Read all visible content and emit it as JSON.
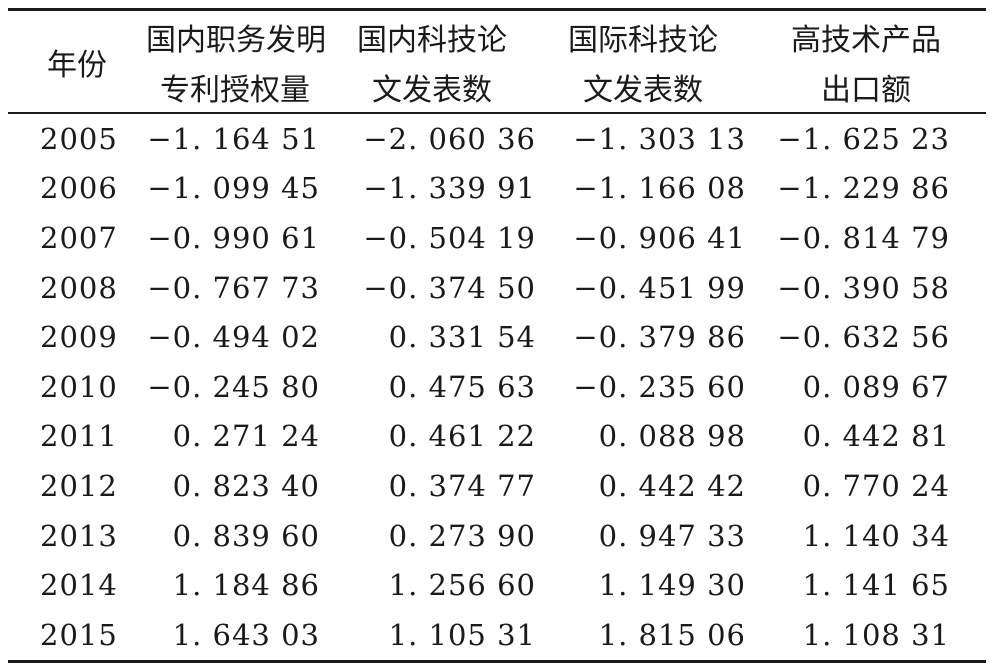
{
  "table": {
    "headers": {
      "year": "年份",
      "col1_line1": "国内职务发明",
      "col1_line2": "专利授权量",
      "col2_line1": "国内科技论",
      "col2_line2": "文发表数",
      "col3_line1": "国际科技论",
      "col3_line2": "文发表数",
      "col4_line1": "高技术产品",
      "col4_line2": "出口额"
    },
    "rows": [
      {
        "year": "2005",
        "v1": "−1. 164 51",
        "v2": "−2. 060 36",
        "v3": "−1. 303 13",
        "v4": "−1. 625 23"
      },
      {
        "year": "2006",
        "v1": "−1. 099 45",
        "v2": "−1. 339 91",
        "v3": "−1. 166 08",
        "v4": "−1. 229 86"
      },
      {
        "year": "2007",
        "v1": "−0. 990 61",
        "v2": "−0. 504 19",
        "v3": "−0. 906 41",
        "v4": "−0. 814 79"
      },
      {
        "year": "2008",
        "v1": "−0. 767 73",
        "v2": "−0. 374 50",
        "v3": "−0. 451 99",
        "v4": "−0. 390 58"
      },
      {
        "year": "2009",
        "v1": "−0. 494 02",
        "v2": "0. 331 54",
        "v3": "−0. 379 86",
        "v4": "−0. 632 56"
      },
      {
        "year": "2010",
        "v1": "−0. 245 80",
        "v2": "0. 475 63",
        "v3": "−0. 235 60",
        "v4": "0. 089 67"
      },
      {
        "year": "2011",
        "v1": "0. 271 24",
        "v2": "0. 461 22",
        "v3": "0. 088 98",
        "v4": "0. 442 81"
      },
      {
        "year": "2012",
        "v1": "0. 823 40",
        "v2": "0. 374 77",
        "v3": "0. 442 42",
        "v4": "0. 770 24"
      },
      {
        "year": "2013",
        "v1": "0. 839 60",
        "v2": "0. 273 90",
        "v3": "0. 947 33",
        "v4": "1. 140 34"
      },
      {
        "year": "2014",
        "v1": "1. 184 86",
        "v2": "1. 256 60",
        "v3": "1. 149 30",
        "v4": "1. 141 65"
      },
      {
        "year": "2015",
        "v1": "1. 643 03",
        "v2": "1. 105 31",
        "v3": "1. 815 06",
        "v4": "1. 108 31"
      }
    ]
  }
}
